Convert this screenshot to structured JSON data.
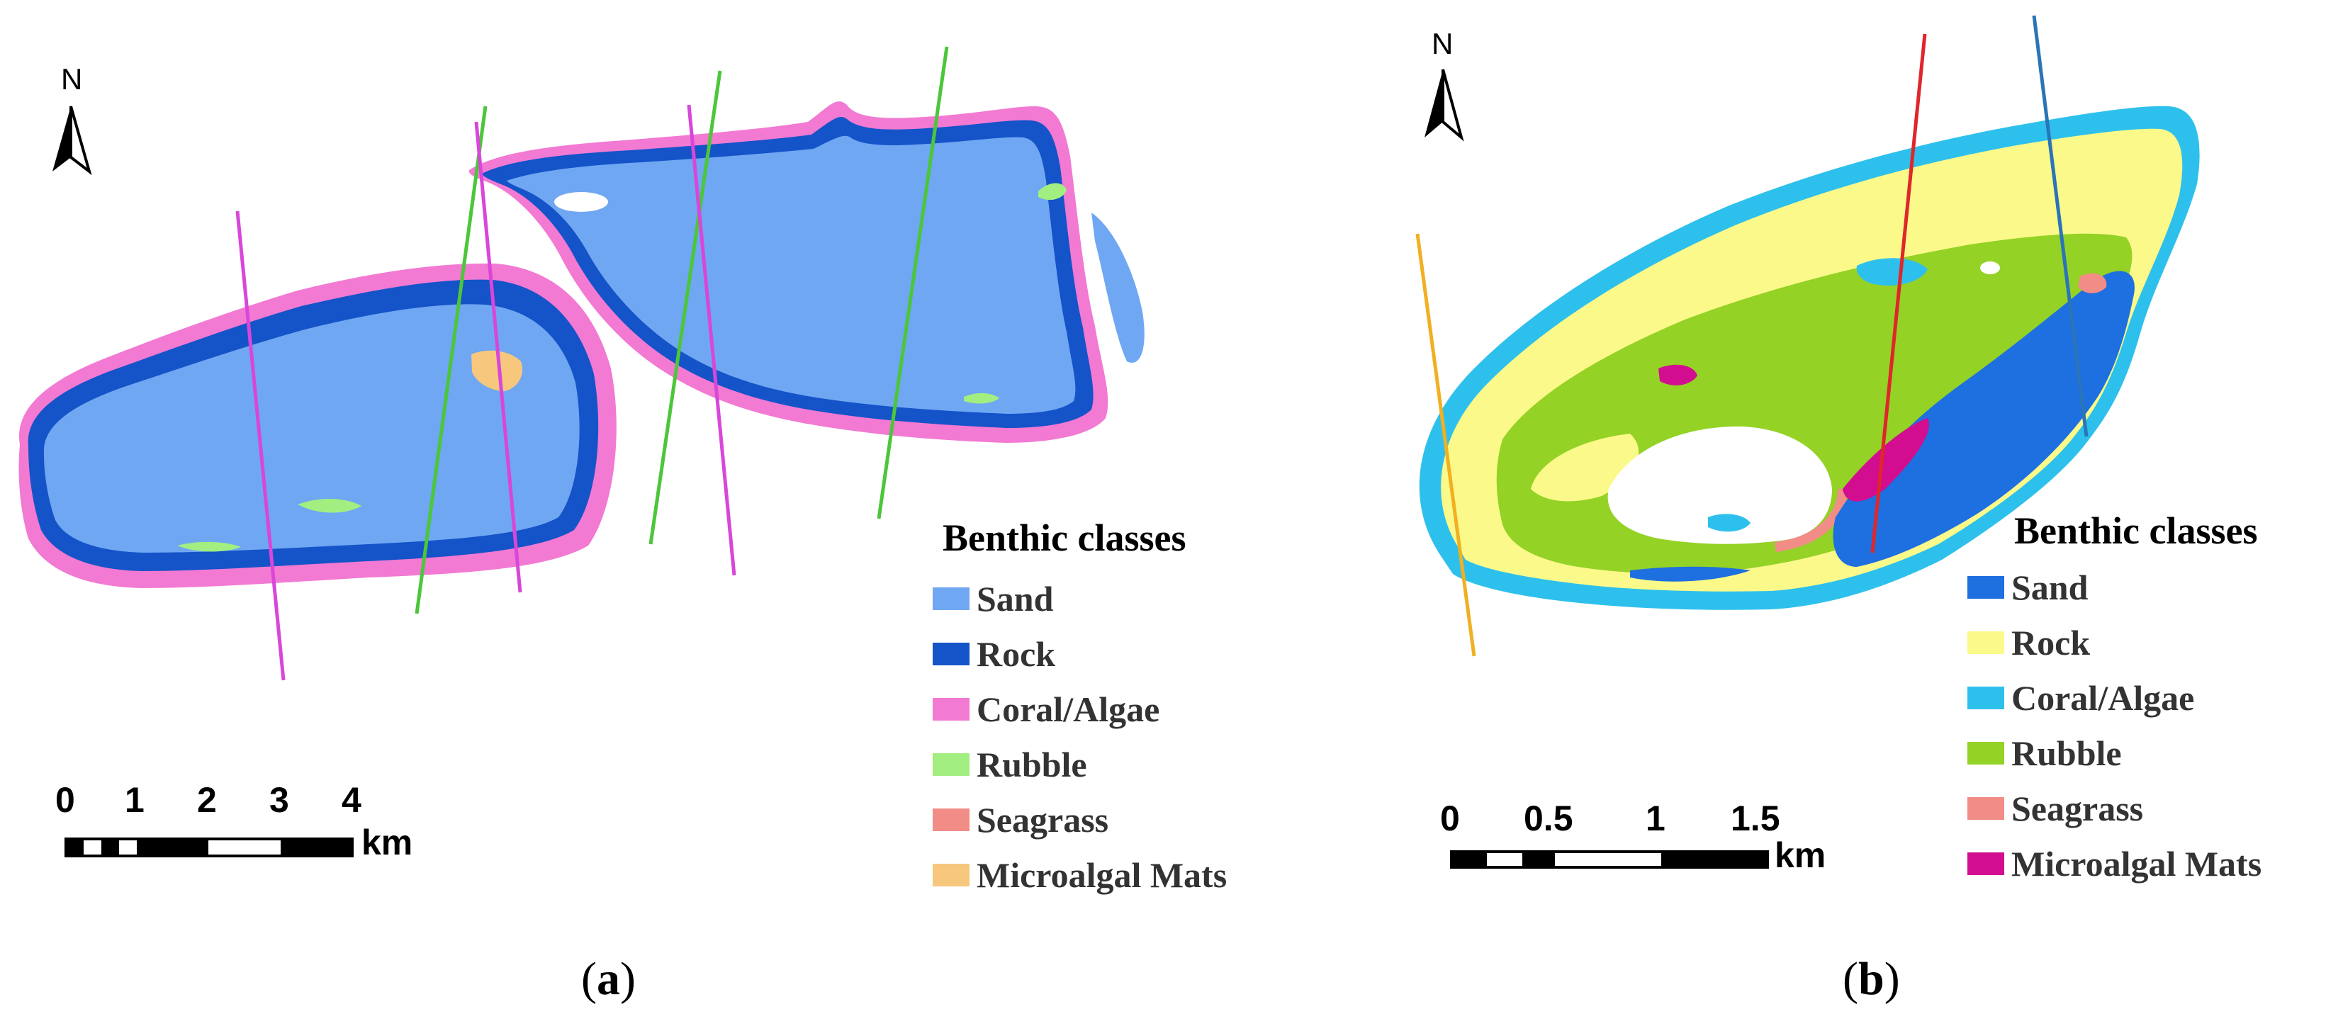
{
  "panel_a": {
    "label_open": "(",
    "label_letter": "a",
    "label_close": ")",
    "north": "N",
    "legend": {
      "title": "Benthic classes",
      "items": [
        {
          "label": "Sand",
          "color": "#6fa7f2"
        },
        {
          "label": "Rock",
          "color": "#1553c8"
        },
        {
          "label": "Coral/Algae",
          "color": "#f27ad2"
        },
        {
          "label": "Rubble",
          "color": "#a3ee80"
        },
        {
          "label": "Seagrass",
          "color": "#f18c86"
        },
        {
          "label": "Microalgal Mats",
          "color": "#f7c77d"
        }
      ]
    },
    "scale": {
      "ticks": [
        "0",
        "1",
        "2",
        "3",
        "4"
      ],
      "unit": "km"
    },
    "transect_colors": [
      "#d946d9",
      "#4cc63a"
    ]
  },
  "panel_b": {
    "label_open": "(",
    "label_letter": "b",
    "label_close": ")",
    "north": "N",
    "legend": {
      "title": "Benthic classes",
      "items": [
        {
          "label": "Sand",
          "color": "#1e6fe0"
        },
        {
          "label": "Rock",
          "color": "#fbf98a"
        },
        {
          "label": "Coral/Algae",
          "color": "#2ec0ec"
        },
        {
          "label": "Rubble",
          "color": "#94d226"
        },
        {
          "label": "Seagrass",
          "color": "#f18c86"
        },
        {
          "label": "Microalgal Mats",
          "color": "#d20d8f"
        }
      ]
    },
    "scale": {
      "ticks": [
        "0",
        "0.5",
        "1",
        "1.5"
      ],
      "unit": "km"
    },
    "transect_colors": [
      "#f0b022",
      "#e0262a",
      "#2a74b8"
    ]
  }
}
